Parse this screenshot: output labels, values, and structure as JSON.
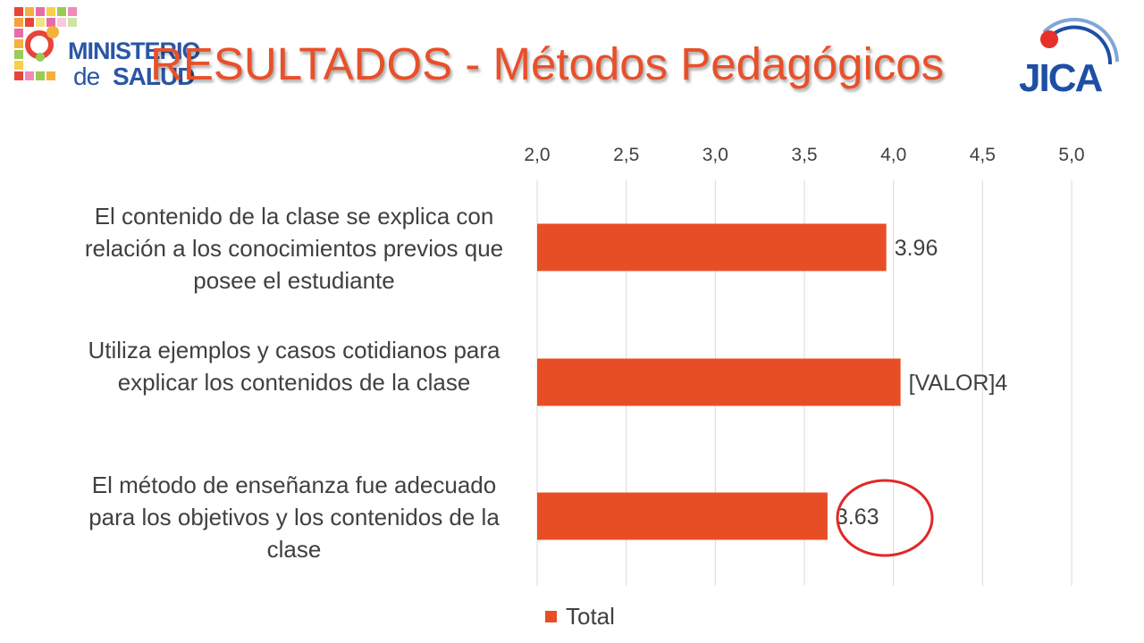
{
  "slide": {
    "title": "RESULTADOS - Métodos Pedagógicos",
    "logo_left": {
      "line1": "MINISTERIO",
      "line2a": "de",
      "line2b": "SALUD"
    },
    "logo_right": {
      "text": "JICA"
    }
  },
  "colors": {
    "bar": "#e84e25",
    "title": "#e8502a",
    "circle": "#e02828",
    "ministerio_blue": "#2a56a5",
    "jica_blue": "#1d4fa3"
  },
  "chart_data": {
    "type": "bar",
    "orientation": "horizontal",
    "categories": [
      "El contenido de la clase se explica con relación a los conocimientos previos que posee el estudiante",
      "Utiliza ejemplos y casos cotidianos para explicar los contenidos de la clase",
      "El método de enseñanza fue adecuado para los objetivos y los contenidos de la clase"
    ],
    "series": [
      {
        "name": "Total",
        "values": [
          3.96,
          4.04,
          3.63
        ]
      }
    ],
    "data_labels": [
      "3.96",
      "[VALOR]4",
      "3.63"
    ],
    "x_ticks": [
      "2,0",
      "2,5",
      "3,0",
      "3,5",
      "4,0",
      "4,5",
      "5,0"
    ],
    "xlim": [
      2.0,
      5.0
    ],
    "axis_position": "top",
    "grid": true,
    "legend": "bottom",
    "highlight": "circle around the 3.63 value"
  }
}
